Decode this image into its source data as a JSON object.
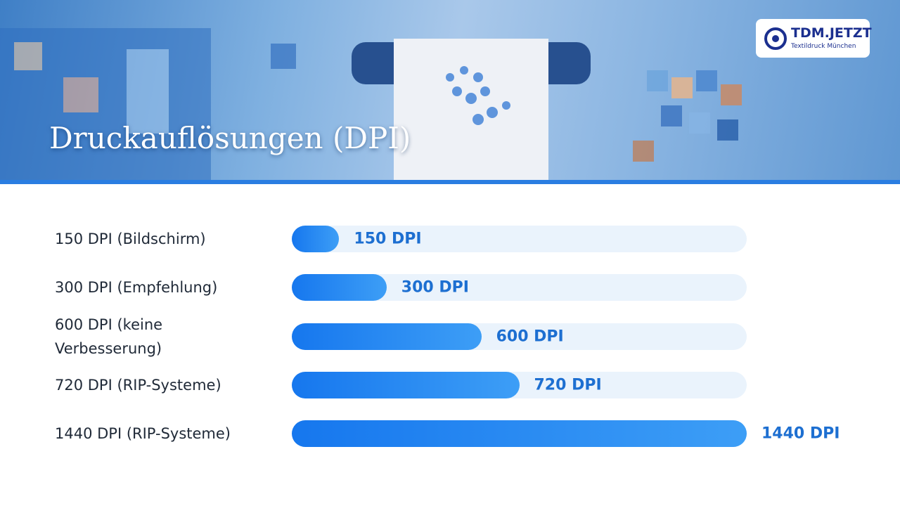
{
  "chart_data": {
    "type": "bar",
    "orientation": "horizontal",
    "title": "Druckauflösungen (DPI)",
    "categories": [
      "150 DPI (Bildschirm)",
      "300 DPI (Empfehlung)",
      "600 DPI (keine Verbesserung)",
      "720 DPI (RIP-Systeme)",
      "1440 DPI (RIP-Systeme)"
    ],
    "values": [
      150,
      300,
      600,
      720,
      1440
    ],
    "value_labels": [
      "150 DPI",
      "300 DPI",
      "600 DPI",
      "720 DPI",
      "1440 DPI"
    ],
    "xlim": [
      0,
      1440
    ],
    "color": "#1677ee"
  },
  "logo": {
    "name": "TDM.JETZT",
    "tagline": "Textildruck München"
  }
}
